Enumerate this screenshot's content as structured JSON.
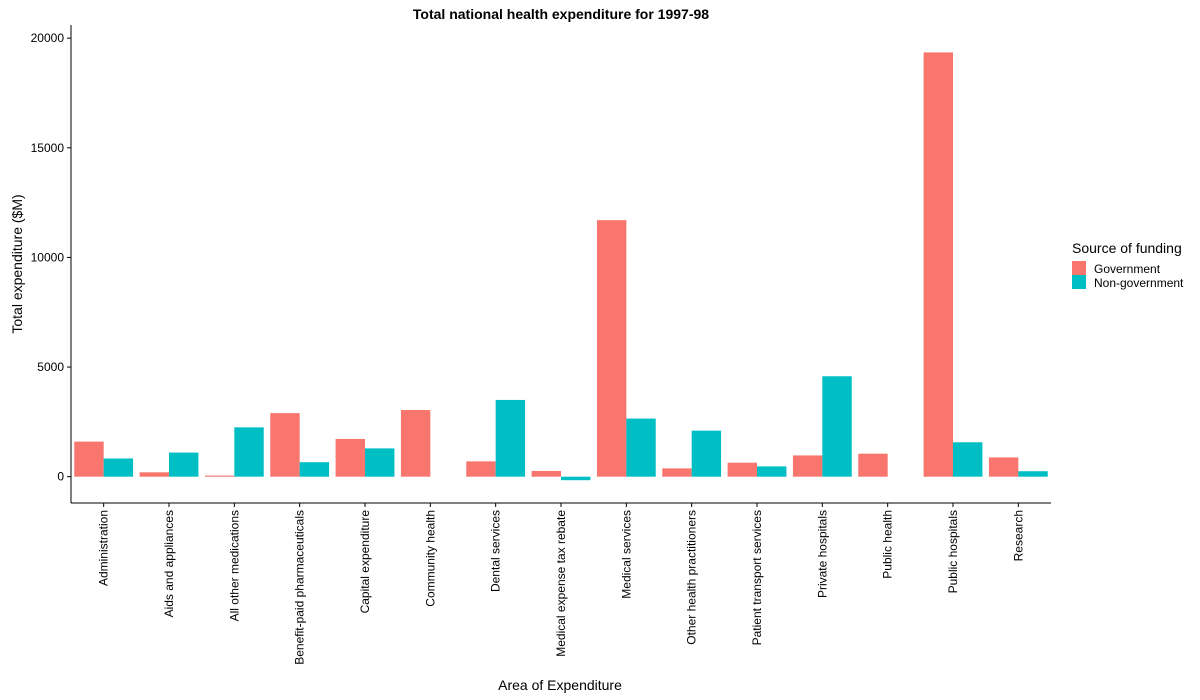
{
  "chart_data": {
    "type": "bar",
    "title": "Total national health expenditure for 1997-98",
    "xlabel": "Area of Expenditure",
    "ylabel": "Total expenditure ($M)",
    "ylim": [
      -1200,
      20600
    ],
    "yticks": [
      0,
      5000,
      10000,
      15000,
      20000
    ],
    "grid": false,
    "legend": {
      "title": "Source of funding",
      "position": "right"
    },
    "categories": [
      "Administration",
      "Aids and appliances",
      "All other medications",
      "Benefit-paid pharmaceuticals",
      "Capital expenditure",
      "Community health",
      "Dental services",
      "Medical expense tax rebate",
      "Medical services",
      "Other health practitioners",
      "Patient transport services",
      "Private hospitals",
      "Public health",
      "Public hospitals",
      "Research"
    ],
    "series": [
      {
        "name": "Government",
        "color": "#F8766D",
        "values": [
          1600,
          200,
          50,
          2900,
          1720,
          3040,
          700,
          260,
          11700,
          380,
          640,
          970,
          1050,
          19350,
          880
        ]
      },
      {
        "name": "Non-government",
        "color": "#00BFC4",
        "values": [
          830,
          1100,
          2250,
          660,
          1290,
          null,
          3500,
          -160,
          2650,
          2100,
          470,
          4580,
          null,
          1570,
          250
        ]
      }
    ]
  }
}
